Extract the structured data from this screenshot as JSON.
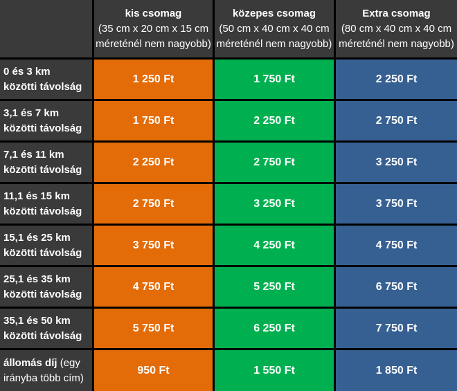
{
  "header": {
    "columns": [
      {
        "title": "kis csomag",
        "sub1": "(35 cm x 20 cm x 15 cm",
        "sub2": "méreténél nem nagyobb)"
      },
      {
        "title": "közepes csomag",
        "sub1": "(50 cm x 40 cm x 40 cm",
        "sub2": "méreténél nem nagyobb)"
      },
      {
        "title": "Extra csomag",
        "sub1": "(80 cm x 40 cm x 40 cm",
        "sub2": "méreténél nem nagyobb)"
      }
    ]
  },
  "rows": [
    {
      "label1": "0 és 3 km",
      "label2": "közötti távolság",
      "prices": [
        "1 250 Ft",
        "1 750 Ft",
        "2 250 Ft"
      ]
    },
    {
      "label1": "3,1 és 7 km",
      "label2": "közötti távolság",
      "prices": [
        "1 750 Ft",
        "2 250 Ft",
        "2 750 Ft"
      ]
    },
    {
      "label1": "7,1 és 11 km",
      "label2": "közötti távolság",
      "prices": [
        "2 250 Ft",
        "2 750 Ft",
        "3 250 Ft"
      ]
    },
    {
      "label1": "11,1 és 15 km",
      "label2": "közötti távolság",
      "prices": [
        "2 750 Ft",
        "3 250 Ft",
        "3 750 Ft"
      ]
    },
    {
      "label1": "15,1 és 25 km",
      "label2": "közötti távolság",
      "prices": [
        "3 750 Ft",
        "4 250 Ft",
        "4 750 Ft"
      ]
    },
    {
      "label1": "25,1 és 35 km",
      "label2": "közötti távolság",
      "prices": [
        "4 750 Ft",
        "5 250 Ft",
        "6 750 Ft"
      ]
    },
    {
      "label1": "35,1 és 50 km",
      "label2": "közötti távolság",
      "prices": [
        "5 750 Ft",
        "6 250 Ft",
        "7 750 Ft"
      ]
    }
  ],
  "station_row": {
    "label_bold": "állomás díj",
    "label_rest1": " (egy",
    "label2": "irányba több cím)",
    "prices": [
      "950 Ft",
      "1 550 Ft",
      "1 850 Ft"
    ]
  },
  "colors": {
    "header_bg": "#3a3a3a",
    "small": "#e36c09",
    "medium": "#00b050",
    "extra": "#376092",
    "grid": "#000000"
  }
}
